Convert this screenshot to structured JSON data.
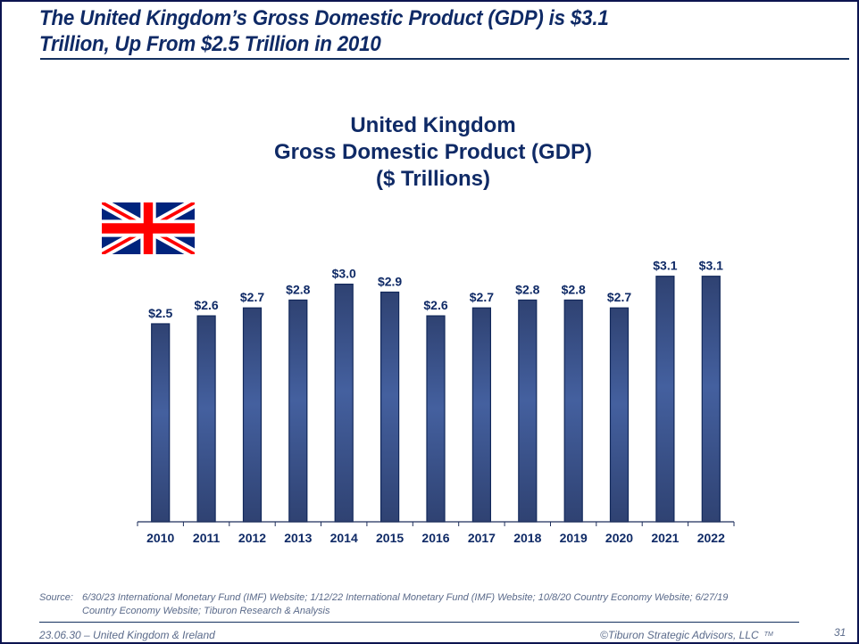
{
  "slide": {
    "headline_line1": "The United Kingdom’s Gross Domestic Product (GDP) is $3.1",
    "headline_line2": "Trillion, Up From $2.5 Trillion in 2010",
    "flag_icon": "united-kingdom-flag",
    "source_label": "Source:",
    "source_line1": "6/30/23 International Monetary Fund (IMF) Website; 1/12/22 International Monetary Fund (IMF) Website; 10/8/20 Country Economy Website; 6/27/19",
    "source_line2": "Country Economy Website; Tiburon Research & Analysis",
    "footer_left": "23.06.30 – United Kingdom & Ireland",
    "footer_right": "©Tiburon Strategic Advisors, LLC",
    "footer_tm": "TM",
    "page_number": "31"
  },
  "colors": {
    "title_navy": "#0f2a66",
    "bar_dark": "#2f4272",
    "bar_light": "#44609f",
    "bar_border": "#12285a",
    "frame": "#0c1450",
    "flag_blue": "#00247d",
    "flag_red": "#ff0000"
  },
  "chart_data": {
    "type": "bar",
    "title": "United Kingdom",
    "subtitle": "Gross Domestic Product (GDP)",
    "units": "($ Trillions)",
    "xlabel": "",
    "ylabel": "",
    "ylim": [
      0,
      3.1
    ],
    "grid": false,
    "legend": "none",
    "categories": [
      "2010",
      "2011",
      "2012",
      "2013",
      "2014",
      "2015",
      "2016",
      "2017",
      "2018",
      "2019",
      "2020",
      "2021",
      "2022"
    ],
    "values": [
      2.5,
      2.6,
      2.7,
      2.8,
      3.0,
      2.9,
      2.6,
      2.7,
      2.8,
      2.8,
      2.7,
      3.1,
      3.1
    ],
    "data_labels": [
      "$2.5",
      "$2.6",
      "$2.7",
      "$2.8",
      "$3.0",
      "$2.9",
      "$2.6",
      "$2.7",
      "$2.8",
      "$2.8",
      "$2.7",
      "$3.1",
      "$3.1"
    ]
  }
}
